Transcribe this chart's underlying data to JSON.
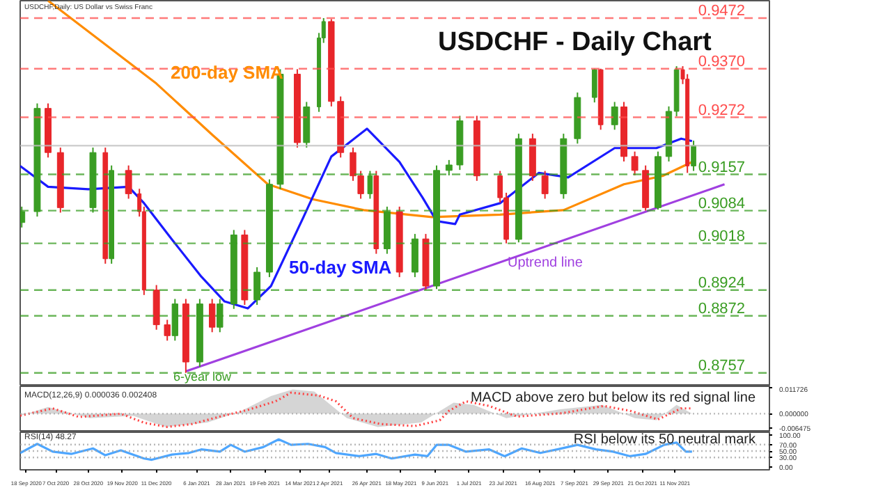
{
  "chart_data": [
    {
      "type": "candlestick",
      "title": "USDCHF - Daily Chart",
      "subtitle": "USDCHF,Daily: US Dollar vs Swiss Franc",
      "xlim": [
        "2020-09-14",
        "2022-01-11"
      ],
      "ylim": [
        0.873,
        0.9507
      ],
      "tick_labels": false,
      "x": [
        "2020-09-15",
        "2020-09-25",
        "2020-10-02",
        "2020-10-10",
        "2020-10-31",
        "2020-11-08",
        "2020-11-12",
        "2020-11-23",
        "2020-11-30",
        "2020-12-03",
        "2020-12-11",
        "2020-12-18",
        "2020-12-23",
        "2020-12-30",
        "2021-01-08",
        "2021-01-16",
        "2021-01-21",
        "2021-01-30",
        "2021-02-06",
        "2021-02-14",
        "2021-02-22",
        "2021-03-01",
        "2021-03-12",
        "2021-03-18",
        "2021-03-26",
        "2021-03-29",
        "2021-04-03",
        "2021-04-09",
        "2021-04-17",
        "2021-04-22",
        "2021-04-28",
        "2021-05-02",
        "2021-05-09",
        "2021-05-17",
        "2021-05-27",
        "2021-06-03",
        "2021-06-10",
        "2021-06-18",
        "2021-06-25",
        "2021-07-06",
        "2021-07-21",
        "2021-07-25",
        "2021-08-02",
        "2021-08-11",
        "2021-08-19",
        "2021-08-31",
        "2021-09-09",
        "2021-09-20",
        "2021-09-24",
        "2021-10-03",
        "2021-10-09",
        "2021-10-16",
        "2021-10-23",
        "2021-10-31",
        "2021-11-07",
        "2021-11-12",
        "2021-11-16",
        "2021-11-19",
        "2021-11-23"
      ],
      "ohlc": [
        [
          0.906,
          0.9092,
          0.905,
          0.9082
        ],
        [
          0.9082,
          0.93,
          0.9072,
          0.929
        ],
        [
          0.929,
          0.93,
          0.9191,
          0.9201
        ],
        [
          0.9201,
          0.9211,
          0.908,
          0.909
        ],
        [
          0.909,
          0.9211,
          0.908,
          0.9201
        ],
        [
          0.9201,
          0.9211,
          0.8977,
          0.8987
        ],
        [
          0.8987,
          0.9175,
          0.8977,
          0.9165
        ],
        [
          0.9165,
          0.9175,
          0.9108,
          0.9118
        ],
        [
          0.9118,
          0.9128,
          0.9072,
          0.9082
        ],
        [
          0.9082,
          0.9092,
          0.8914,
          0.8924
        ],
        [
          0.8924,
          0.8934,
          0.8844,
          0.8854
        ],
        [
          0.8854,
          0.8864,
          0.8822,
          0.8832
        ],
        [
          0.8832,
          0.8906,
          0.8822,
          0.8896
        ],
        [
          0.8896,
          0.8906,
          0.8757,
          0.8779
        ],
        [
          0.8779,
          0.8906,
          0.8769,
          0.8896
        ],
        [
          0.8896,
          0.8906,
          0.8839,
          0.8849
        ],
        [
          0.8849,
          0.8906,
          0.8839,
          0.8896
        ],
        [
          0.8896,
          0.9045,
          0.8886,
          0.9035
        ],
        [
          0.9035,
          0.9045,
          0.8894,
          0.8904
        ],
        [
          0.8904,
          0.897,
          0.8894,
          0.896
        ],
        [
          0.896,
          0.9147,
          0.895,
          0.9137
        ],
        [
          0.9137,
          0.9369,
          0.9127,
          0.9359
        ],
        [
          0.9359,
          0.9369,
          0.9211,
          0.9221
        ],
        [
          0.9221,
          0.9303,
          0.9211,
          0.9293
        ],
        [
          0.9293,
          0.9442,
          0.9283,
          0.9432
        ],
        [
          0.9432,
          0.9472,
          0.9422,
          0.9465
        ],
        [
          0.9465,
          0.947,
          0.9294,
          0.9304
        ],
        [
          0.9304,
          0.9314,
          0.9191,
          0.9201
        ],
        [
          0.9201,
          0.9211,
          0.9144,
          0.9154
        ],
        [
          0.9154,
          0.9164,
          0.9108,
          0.9118
        ],
        [
          0.9118,
          0.9164,
          0.9108,
          0.9154
        ],
        [
          0.9154,
          0.9164,
          0.8997,
          0.9007
        ],
        [
          0.9007,
          0.9092,
          0.8997,
          0.9082
        ],
        [
          0.9082,
          0.9092,
          0.895,
          0.896
        ],
        [
          0.896,
          0.9037,
          0.895,
          0.9027
        ],
        [
          0.9027,
          0.9037,
          0.8924,
          0.8932
        ],
        [
          0.8932,
          0.9175,
          0.8926,
          0.9165
        ],
        [
          0.9165,
          0.9186,
          0.9155,
          0.9176
        ],
        [
          0.9176,
          0.9275,
          0.9166,
          0.9265
        ],
        [
          0.9265,
          0.9275,
          0.9144,
          0.9154
        ],
        [
          0.9154,
          0.9164,
          0.91,
          0.911
        ],
        [
          0.911,
          0.912,
          0.9018,
          0.9026
        ],
        [
          0.9026,
          0.9239,
          0.902,
          0.9229
        ],
        [
          0.9229,
          0.9239,
          0.9144,
          0.9154
        ],
        [
          0.9154,
          0.9164,
          0.9108,
          0.9118
        ],
        [
          0.9118,
          0.9239,
          0.9108,
          0.9229
        ],
        [
          0.9229,
          0.9322,
          0.9219,
          0.9312
        ],
        [
          0.9312,
          0.937,
          0.9302,
          0.9368
        ],
        [
          0.9368,
          0.937,
          0.9247,
          0.9257
        ],
        [
          0.9257,
          0.9303,
          0.9247,
          0.9293
        ],
        [
          0.9293,
          0.9303,
          0.9183,
          0.9193
        ],
        [
          0.9193,
          0.9203,
          0.9155,
          0.9165
        ],
        [
          0.9165,
          0.9175,
          0.9084,
          0.909
        ],
        [
          0.909,
          0.9203,
          0.9086,
          0.9193
        ],
        [
          0.9193,
          0.9294,
          0.9183,
          0.9284
        ],
        [
          0.9284,
          0.9375,
          0.9274,
          0.9368
        ],
        [
          0.9368,
          0.9375,
          0.9339,
          0.9349
        ],
        [
          0.9349,
          0.9359,
          0.916,
          0.9174
        ],
        [
          0.9174,
          0.9225,
          0.9164,
          0.9215
        ]
      ],
      "colors": [
        "#3a9d23",
        "#3a9d23",
        "#e8262a",
        "#e8262a",
        "#3a9d23",
        "#e8262a",
        "#3a9d23",
        "#e8262a",
        "#e8262a",
        "#e8262a",
        "#e8262a",
        "#e8262a",
        "#3a9d23",
        "#e8262a",
        "#3a9d23",
        "#e8262a",
        "#3a9d23",
        "#3a9d23",
        "#e8262a",
        "#3a9d23",
        "#3a9d23",
        "#3a9d23",
        "#e8262a",
        "#3a9d23",
        "#3a9d23",
        "#3a9d23",
        "#e8262a",
        "#e8262a",
        "#e8262a",
        "#e8262a",
        "#3a9d23",
        "#e8262a",
        "#3a9d23",
        "#e8262a",
        "#3a9d23",
        "#e8262a",
        "#3a9d23",
        "#3a9d23",
        "#3a9d23",
        "#e8262a",
        "#e8262a",
        "#e8262a",
        "#3a9d23",
        "#e8262a",
        "#e8262a",
        "#3a9d23",
        "#3a9d23",
        "#3a9d23",
        "#e8262a",
        "#3a9d23",
        "#e8262a",
        "#e8262a",
        "#e8262a",
        "#3a9d23",
        "#3a9d23",
        "#3a9d23",
        "#e8262a",
        "#e8262a",
        "#3a9d23"
      ],
      "series": [
        {
          "type": "line",
          "color": "#ff8c00",
          "x": [
            "2020-10-02",
            "2020-12-11",
            "2021-01-16",
            "2021-02-21",
            "2021-03-22",
            "2021-04-24",
            "2021-06-07",
            "2021-07-21",
            "2021-08-31",
            "2021-10-09",
            "2021-11-03",
            "2021-11-22"
          ],
          "values": [
            0.9507,
            0.934,
            0.9237,
            0.9137,
            0.9107,
            0.9085,
            0.9071,
            0.9076,
            0.9085,
            0.9137,
            0.9154,
            0.9182
          ]
        },
        {
          "type": "line",
          "color": "#1a1aff",
          "x": [
            "2020-09-14",
            "2020-10-02",
            "2020-10-28",
            "2020-11-23",
            "2020-12-03",
            "2020-12-21",
            "2021-01-09",
            "2021-01-24",
            "2021-02-08",
            "2021-02-23",
            "2021-03-16",
            "2021-04-03",
            "2021-04-26",
            "2021-05-17",
            "2021-06-01",
            "2021-06-10",
            "2021-06-22",
            "2021-06-25",
            "2021-07-21",
            "2021-08-15",
            "2021-09-03",
            "2021-10-03",
            "2021-10-30",
            "2021-11-15",
            "2021-11-22"
          ],
          "values": [
            0.9174,
            0.9132,
            0.9127,
            0.9132,
            0.9099,
            0.9026,
            0.8951,
            0.8901,
            0.8887,
            0.8932,
            0.9071,
            0.9193,
            0.9249,
            0.9182,
            0.911,
            0.9063,
            0.9057,
            0.9076,
            0.9099,
            0.916,
            0.9151,
            0.921,
            0.921,
            0.9229,
            0.9224
          ]
        },
        {
          "type": "line",
          "color": "#a040e0",
          "x": [
            "2020-12-30",
            "2021-12-13"
          ],
          "values": [
            0.876,
            0.9137
          ]
        }
      ],
      "ref_lines": [
        {
          "axis": "y",
          "value": 0.9472,
          "label": "0.9472",
          "color": "#ff4d4d",
          "line_style": "dashed"
        },
        {
          "axis": "y",
          "value": 0.937,
          "label": "0.9370",
          "color": "#ff4d4d",
          "line_style": "dashed"
        },
        {
          "axis": "y",
          "value": 0.9272,
          "label": "0.9272",
          "color": "#ff4d4d",
          "line_style": "dashed"
        },
        {
          "axis": "y",
          "value": 0.9215,
          "label": null,
          "color": "#c0c0c0",
          "line_style": "solid"
        },
        {
          "axis": "y",
          "value": 0.9157,
          "label": "0.9157",
          "color": "#3a9d23",
          "line_style": "dashed"
        },
        {
          "axis": "y",
          "value": 0.9084,
          "label": "0.9084",
          "color": "#3a9d23",
          "line_style": "dashed"
        },
        {
          "axis": "y",
          "value": 0.9018,
          "label": "0.9018",
          "color": "#3a9d23",
          "line_style": "dashed"
        },
        {
          "axis": "y",
          "value": 0.8924,
          "label": "0.8924",
          "color": "#3a9d23",
          "line_style": "dashed"
        },
        {
          "axis": "y",
          "value": 0.8872,
          "label": "0.8872",
          "color": "#3a9d23",
          "line_style": "dashed"
        },
        {
          "axis": "y",
          "value": 0.8757,
          "label": "0.8757",
          "color": "#3a9d23",
          "line_style": "dashed"
        }
      ],
      "annotations": [
        "200-day SMA",
        "50-day SMA",
        "Uptrend line",
        "6-year low"
      ]
    },
    {
      "type": "line",
      "title": "MACD(12,26,9) 0.000036 0.002408",
      "xlim": [
        "2020-09-14",
        "2022-01-11"
      ],
      "ylim": [
        -0.0084,
        0.0124
      ],
      "tick_labels": "y",
      "yticks": [
        {
          "value": 0.011726,
          "label": "0.011726"
        },
        {
          "value": 0,
          "label": "0.000000"
        },
        {
          "value": -0.006475,
          "label": "-0.006475"
        }
      ],
      "ref_lines": [
        {
          "axis": "y",
          "value": 0,
          "label": null,
          "color": "#a0a0a0",
          "line_style": "dotted"
        }
      ],
      "annotations": [
        "MACD above zero but below its red signal line"
      ],
      "series": [
        {
          "type": "area",
          "color": "#d0d0d0",
          "x": [
            "2020-09-14",
            "2020-10-02",
            "2020-10-29",
            "2020-11-26",
            "2020-12-17",
            "2021-01-13",
            "2021-02-03",
            "2021-02-23",
            "2021-03-09",
            "2021-03-23",
            "2021-04-13",
            "2021-05-03",
            "2021-05-31",
            "2021-06-21",
            "2021-07-04",
            "2021-07-25",
            "2021-08-29",
            "2021-09-25",
            "2021-10-16",
            "2021-10-30",
            "2021-11-12",
            "2021-11-22"
          ],
          "values": [
            -0.001,
            0.003,
            -0.002,
            -0.001,
            -0.006,
            -0.004,
            0.001,
            0.008,
            0.011,
            0.01,
            -0.002,
            -0.006,
            -0.004,
            0.005,
            0.004,
            -0.002,
            0.002,
            0.004,
            -0.002,
            -0.003,
            0.004,
            0.0
          ]
        },
        {
          "type": "line",
          "color": "#ff4040",
          "line_style": "dotted",
          "x": [
            "2020-09-14",
            "2020-10-05",
            "2020-10-22",
            "2020-11-18",
            "2020-12-03",
            "2020-12-18",
            "2021-01-03",
            "2021-01-21",
            "2021-02-08",
            "2021-02-26",
            "2021-03-08",
            "2021-03-26",
            "2021-04-06",
            "2021-04-17",
            "2021-05-05",
            "2021-05-27",
            "2021-06-12",
            "2021-06-18",
            "2021-06-29",
            "2021-07-14",
            "2021-08-01",
            "2021-08-30",
            "2021-09-26",
            "2021-10-13",
            "2021-10-31",
            "2021-11-15",
            "2021-11-22"
          ],
          "values": [
            -0.0009,
            0.0024,
            -0.0015,
            0.0,
            -0.0041,
            -0.006,
            -0.0047,
            -0.0013,
            0.0017,
            0.0056,
            0.0095,
            0.0082,
            0.0056,
            -0.002,
            -0.0047,
            -0.0056,
            -0.003,
            0.0013,
            0.0056,
            0.0035,
            -0.0013,
            0.0002,
            0.0035,
            0.0013,
            -0.0026,
            0.0024,
            0.0024
          ]
        }
      ]
    },
    {
      "type": "line",
      "title": "RSI(14) 48.27",
      "xlim": [
        "2020-09-14",
        "2022-01-11"
      ],
      "ylim": [
        -8,
        108
      ],
      "xticks": [
        {
          "value": "2020-09-18",
          "label": "18 Sep 2020"
        },
        {
          "value": "2020-10-07",
          "label": "7 Oct 2020"
        },
        {
          "value": "2020-10-28",
          "label": "28 Oct 2020"
        },
        {
          "value": "2020-11-19",
          "label": "19 Nov 2020"
        },
        {
          "value": "2020-12-11",
          "label": "11 Dec 2020"
        },
        {
          "value": "2021-01-06",
          "label": "6 Jan 2021"
        },
        {
          "value": "2021-01-28",
          "label": "28 Jan 2021"
        },
        {
          "value": "2021-02-19",
          "label": "19 Feb 2021"
        },
        {
          "value": "2021-03-14",
          "label": "14 Mar 2021"
        },
        {
          "value": "2021-04-02",
          "label": "2 Apr 2021"
        },
        {
          "value": "2021-04-26",
          "label": "26 Apr 2021"
        },
        {
          "value": "2021-05-18",
          "label": "18 May 2021"
        },
        {
          "value": "2021-06-09",
          "label": "9 Jun 2021"
        },
        {
          "value": "2021-07-01",
          "label": "1 Jul 2021"
        },
        {
          "value": "2021-07-23",
          "label": "23 Jul 2021"
        },
        {
          "value": "2021-08-16",
          "label": "16 Aug 2021"
        },
        {
          "value": "2021-09-07",
          "label": "7 Sep 2021"
        },
        {
          "value": "2021-09-29",
          "label": "29 Sep 2021"
        },
        {
          "value": "2021-10-21",
          "label": "21 Oct 2021"
        },
        {
          "value": "2021-11-11",
          "label": "11 Nov 2021"
        }
      ],
      "yticks": [
        {
          "value": 100,
          "label": "100.00"
        },
        {
          "value": 70,
          "label": "70.00"
        },
        {
          "value": 50,
          "label": "50.00"
        },
        {
          "value": 30,
          "label": "30.00"
        },
        {
          "value": 0,
          "label": "0.00"
        }
      ],
      "ref_lines": [
        {
          "axis": "y",
          "value": 70,
          "label": null,
          "color": "#a0a0a0",
          "line_style": "dotted"
        },
        {
          "axis": "y",
          "value": 50,
          "label": null,
          "color": "#a0a0a0",
          "line_style": "dotted"
        },
        {
          "axis": "y",
          "value": 30,
          "label": null,
          "color": "#a0a0a0",
          "line_style": "dotted"
        }
      ],
      "annotations": [
        "RSI below its 50 neutral mark"
      ],
      "series": [
        {
          "type": "line",
          "color": "#4da6ff",
          "x": [
            "2020-09-14",
            "2020-09-25",
            "2020-10-05",
            "2020-10-17",
            "2020-10-31",
            "2020-11-08",
            "2020-11-18",
            "2020-12-03",
            "2020-12-08",
            "2020-12-21",
            "2021-01-01",
            "2021-01-09",
            "2021-01-21",
            "2021-01-28",
            "2021-02-06",
            "2021-02-18",
            "2021-02-28",
            "2021-03-08",
            "2021-03-19",
            "2021-03-30",
            "2021-04-06",
            "2021-04-21",
            "2021-05-02",
            "2021-05-12",
            "2021-05-27",
            "2021-06-04",
            "2021-06-10",
            "2021-06-18",
            "2021-06-29",
            "2021-07-14",
            "2021-07-24",
            "2021-08-04",
            "2021-08-16",
            "2021-08-27",
            "2021-09-09",
            "2021-09-21",
            "2021-10-02",
            "2021-10-13",
            "2021-10-23",
            "2021-11-04",
            "2021-11-12",
            "2021-11-18",
            "2021-11-22"
          ],
          "values": [
            44,
            72,
            48,
            41,
            58,
            37,
            52,
            27,
            23,
            39,
            44,
            55,
            48,
            69,
            48,
            62,
            86,
            69,
            72,
            62,
            44,
            34,
            41,
            27,
            39,
            34,
            69,
            69,
            48,
            55,
            34,
            58,
            44,
            55,
            69,
            55,
            48,
            34,
            41,
            69,
            76,
            48,
            48
          ]
        }
      ]
    }
  ]
}
